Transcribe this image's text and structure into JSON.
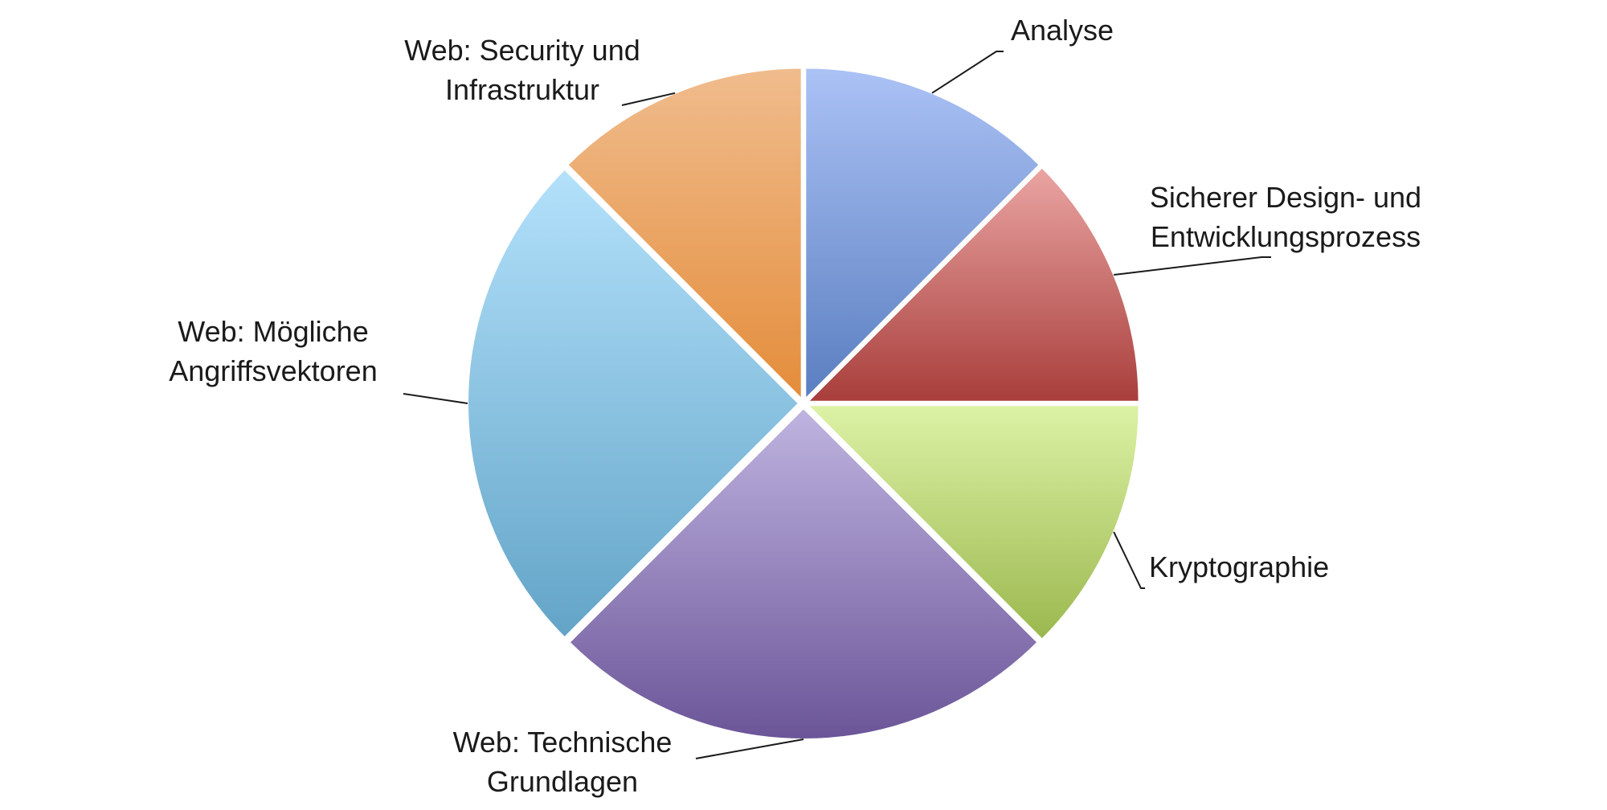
{
  "chart_data": {
    "type": "pie",
    "title": "",
    "slices": [
      {
        "label": [
          "Analyse"
        ],
        "value": 1,
        "color_top": "#abc2f5",
        "color_bottom": "#5a7ec0"
      },
      {
        "label": [
          "Sicherer Design- und",
          "Entwicklungsprozess"
        ],
        "value": 1,
        "color_top": "#eaa5a3",
        "color_bottom": "#a83e3b"
      },
      {
        "label": [
          "Kryptographie"
        ],
        "value": 1,
        "color_top": "#dcf2a6",
        "color_bottom": "#9bb84e"
      },
      {
        "label": [
          "Web: Technische",
          "Grundlagen"
        ],
        "value": 2,
        "color_top": "#bfb4e0",
        "color_bottom": "#6b5598"
      },
      {
        "label": [
          "Web: Mögliche",
          "Angriffsvektoren"
        ],
        "value": 2,
        "color_top": "#b3e1fb",
        "color_bottom": "#63a4c7"
      },
      {
        "label": [
          "Web: Security und",
          "Infrastruktur"
        ],
        "value": 1,
        "color_top": "#f0bc8d",
        "color_bottom": "#e48d3b"
      }
    ],
    "legend": "none"
  }
}
